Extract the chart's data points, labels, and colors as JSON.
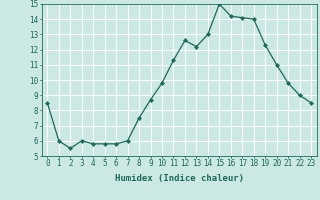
{
  "x": [
    0,
    1,
    2,
    3,
    4,
    5,
    6,
    7,
    8,
    9,
    10,
    11,
    12,
    13,
    14,
    15,
    16,
    17,
    18,
    19,
    20,
    21,
    22,
    23
  ],
  "y": [
    8.5,
    6.0,
    5.5,
    6.0,
    5.8,
    5.8,
    5.8,
    6.0,
    7.5,
    8.7,
    9.8,
    11.3,
    12.6,
    12.2,
    13.0,
    15.0,
    14.2,
    14.1,
    14.0,
    12.3,
    11.0,
    9.8,
    9.0,
    8.5
  ],
  "xlabel": "Humidex (Indice chaleur)",
  "line_color": "#1a6b5a",
  "marker_color": "#1a6b5a",
  "bg_color": "#cce8e4",
  "grid_color": "#ffffff",
  "ylim": [
    5,
    15
  ],
  "xlim": [
    -0.5,
    23.5
  ],
  "yticks": [
    5,
    6,
    7,
    8,
    9,
    10,
    11,
    12,
    13,
    14,
    15
  ],
  "xticks": [
    0,
    1,
    2,
    3,
    4,
    5,
    6,
    7,
    8,
    9,
    10,
    11,
    12,
    13,
    14,
    15,
    16,
    17,
    18,
    19,
    20,
    21,
    22,
    23
  ],
  "xlabel_fontsize": 6.5,
  "tick_fontsize": 5.5
}
